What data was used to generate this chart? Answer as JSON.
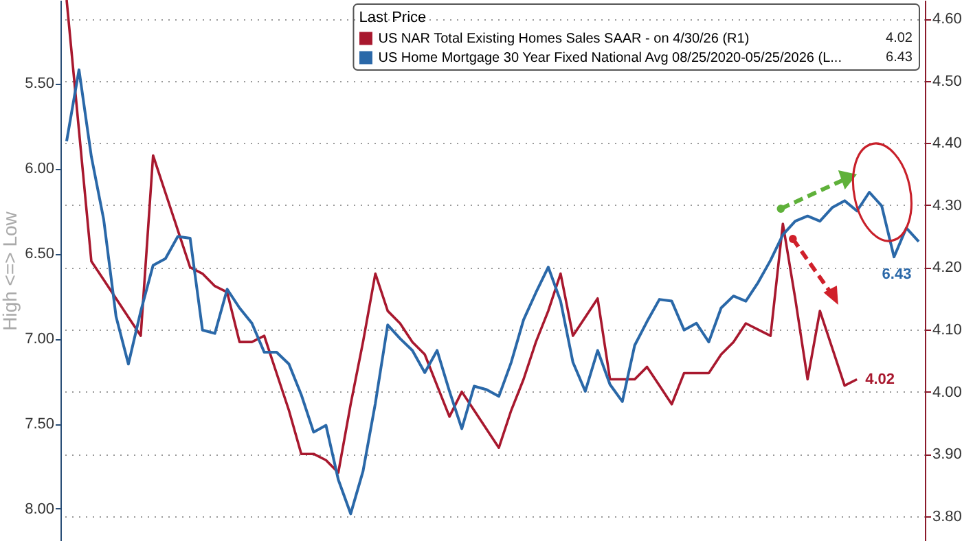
{
  "chart_data": {
    "type": "line",
    "legend_title": "Last Price",
    "ylabel": "High <=> Low",
    "legend": "top right",
    "grid": "y",
    "tick_labels": "y",
    "categories": [
      null,
      null,
      null,
      null,
      null,
      null,
      null,
      null,
      null,
      null,
      null,
      null,
      null,
      null,
      null,
      null,
      null,
      null,
      null,
      null,
      null,
      null,
      null,
      null,
      null,
      null,
      null,
      null,
      null,
      null,
      null,
      null,
      null,
      null,
      null,
      null,
      null,
      null,
      null,
      null,
      null,
      null,
      null,
      null,
      null,
      null,
      null,
      null,
      null,
      null,
      null,
      null,
      null,
      null,
      null,
      null,
      null,
      null,
      null,
      null,
      null,
      null,
      null,
      null,
      null,
      null,
      null,
      null,
      null,
      null
    ],
    "ylim": [
      8.19,
      5.01
    ],
    "yticks": [
      {
        "value": 5.5,
        "label": "5.50"
      },
      {
        "value": 6,
        "label": "6.00"
      },
      {
        "value": 6.5,
        "label": "6.50"
      },
      {
        "value": 7,
        "label": "7.00"
      },
      {
        "value": 7.5,
        "label": "7.50"
      },
      {
        "value": 8,
        "label": "8.00"
      }
    ],
    "y2lim": [
      3.76,
      4.63
    ],
    "y2ticks": [
      {
        "value": 3.8,
        "label": "3.80"
      },
      {
        "value": 3.9,
        "label": "3.90"
      },
      {
        "value": 4,
        "label": "4.00"
      },
      {
        "value": 4.1,
        "label": "4.10"
      },
      {
        "value": 4.2,
        "label": "4.20"
      },
      {
        "value": 4.3,
        "label": "4.30"
      },
      {
        "value": 4.4,
        "label": "4.40"
      },
      {
        "value": 4.5,
        "label": "4.50"
      },
      {
        "value": 4.6,
        "label": "4.60"
      }
    ],
    "series": [
      {
        "name": "US NAR Total Existing Homes Sales SAAR -  on 4/30/26  (R1)",
        "color": "#a8182e",
        "axis": "y2",
        "values": [
          4.63,
          4.42,
          4.21,
          4.18,
          4.15,
          4.12,
          4.09,
          4.38,
          4.32,
          4.26,
          4.2,
          4.19,
          4.17,
          4.16,
          4.08,
          4.08,
          4.09,
          4.03,
          3.97,
          3.9,
          3.9,
          3.89,
          3.87,
          3.98,
          4.08,
          4.19,
          4.13,
          4.11,
          4.08,
          4.06,
          4.01,
          3.96,
          4.0,
          3.97,
          3.94,
          3.91,
          3.97,
          4.02,
          4.08,
          4.13,
          4.19,
          4.09,
          4.12,
          4.15,
          4.02,
          4.02,
          4.02,
          4.04,
          4.01,
          3.98,
          4.03,
          4.03,
          4.03,
          4.06,
          4.08,
          4.11,
          4.1,
          4.09,
          4.27,
          4.15,
          4.02,
          4.13,
          4.07,
          4.01,
          4.02,
          null,
          null,
          null,
          null,
          null
        ],
        "value_labels": [
          null,
          null,
          null,
          null,
          null,
          null,
          null,
          null,
          null,
          null,
          null,
          null,
          null,
          null,
          null,
          null,
          null,
          null,
          null,
          null,
          null,
          null,
          null,
          null,
          null,
          null,
          null,
          null,
          null,
          null,
          null,
          null,
          null,
          null,
          null,
          null,
          null,
          null,
          null,
          null,
          null,
          null,
          null,
          null,
          null,
          null,
          null,
          null,
          null,
          null,
          null,
          null,
          null,
          null,
          null,
          null,
          null,
          null,
          null,
          null,
          null,
          null,
          null,
          null,
          "4.02",
          null,
          null,
          null,
          null,
          null
        ]
      },
      {
        "name": "US Home Mortgage 30 Year Fixed National Avg 08/25/2020-05/25/2026  (L...",
        "color": "#2a68a8",
        "axis": "y",
        "values": [
          5.84,
          5.42,
          5.93,
          6.3,
          6.87,
          7.15,
          6.84,
          6.57,
          6.53,
          6.4,
          6.41,
          6.95,
          6.97,
          6.71,
          6.82,
          6.91,
          7.08,
          7.08,
          7.15,
          7.33,
          7.55,
          7.51,
          7.83,
          8.03,
          7.78,
          7.38,
          6.92,
          7.0,
          7.07,
          7.2,
          7.07,
          7.31,
          7.53,
          7.28,
          7.3,
          7.34,
          7.14,
          6.89,
          6.73,
          6.58,
          6.78,
          7.14,
          7.31,
          7.07,
          7.27,
          7.37,
          7.04,
          6.9,
          6.77,
          6.78,
          6.95,
          6.91,
          7.02,
          6.82,
          6.75,
          6.78,
          6.67,
          6.54,
          6.39,
          6.31,
          6.28,
          6.31,
          6.23,
          6.19,
          6.25,
          6.14,
          6.22,
          6.52,
          6.35,
          6.43
        ],
        "value_labels": [
          null,
          null,
          null,
          null,
          null,
          null,
          null,
          null,
          null,
          null,
          null,
          null,
          null,
          null,
          null,
          null,
          null,
          null,
          null,
          null,
          null,
          null,
          null,
          null,
          null,
          null,
          null,
          null,
          null,
          null,
          null,
          null,
          null,
          null,
          null,
          null,
          null,
          null,
          null,
          null,
          null,
          null,
          null,
          null,
          null,
          null,
          null,
          null,
          null,
          null,
          null,
          null,
          null,
          null,
          null,
          null,
          null,
          null,
          null,
          null,
          null,
          null,
          null,
          null,
          null,
          null,
          null,
          null,
          null,
          "6.43"
        ]
      }
    ]
  }
}
